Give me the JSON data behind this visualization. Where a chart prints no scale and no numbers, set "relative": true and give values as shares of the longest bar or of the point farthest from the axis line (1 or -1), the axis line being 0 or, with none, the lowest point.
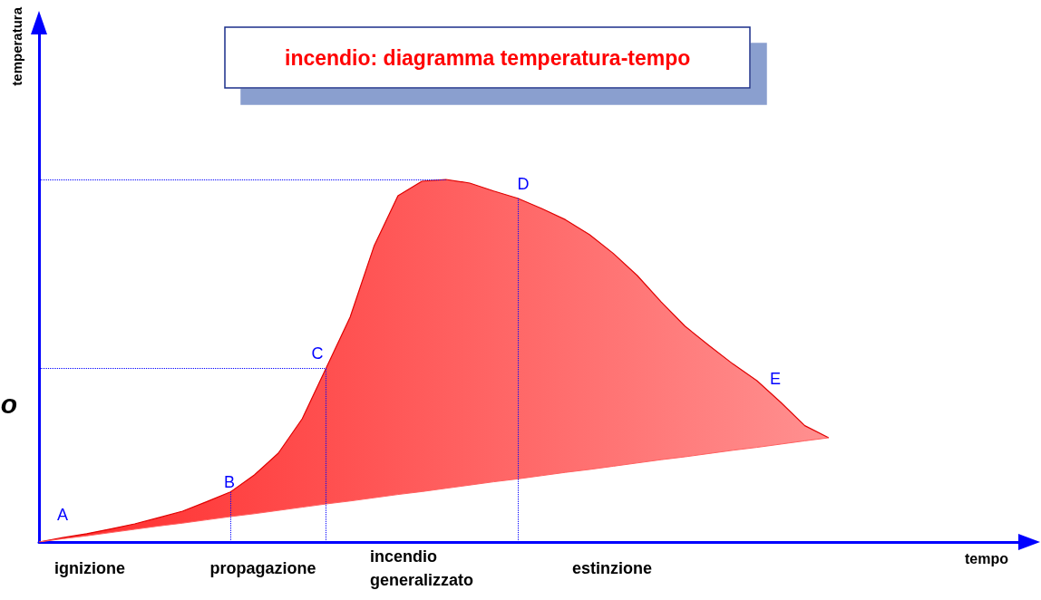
{
  "chart_data": {
    "type": "area",
    "title": "incendio: diagramma temperatura-tempo",
    "xlabel": "tempo",
    "relative": true,
    "marker": "none",
    "line_style": "solid",
    "categories": [
      null,
      null,
      null,
      null,
      null,
      null,
      null,
      null,
      null,
      null,
      null,
      null,
      null,
      null,
      null,
      null,
      null,
      null,
      null,
      null,
      null,
      null,
      null,
      null,
      null,
      null,
      null,
      null,
      null,
      null,
      null,
      null,
      null,
      null,
      null,
      null,
      null,
      null,
      null,
      null,
      null,
      null
    ],
    "series": [
      {
        "color": "#ff2a2a",
        "values": [
          0,
          0.012,
          0.023,
          0.036,
          0.05,
          0.067,
          0.085,
          0.111,
          0.138,
          0.185,
          0.245,
          0.34,
          0.48,
          0.62,
          0.816,
          0.955,
          0.995,
          1.0,
          0.99,
          0.968,
          0.948,
          0.92,
          0.889,
          0.848,
          0.796,
          0.735,
          0.662,
          0.595,
          0.542,
          0.491,
          0.445,
          0.385,
          0.321,
          0.2875,
          null,
          null,
          null,
          null,
          null,
          null,
          null,
          null
        ]
      },
      {
        "type": "line",
        "color": "#ff6060",
        "values": [
          0,
          0.009,
          0.017,
          0.026,
          0.035,
          0.044,
          0.052,
          0.061,
          0.07,
          0.078,
          0.087,
          0.096,
          0.105,
          0.113,
          0.122,
          0.131,
          0.139,
          0.148,
          0.157,
          0.166,
          0.174,
          0.183,
          0.192,
          0.2,
          0.209,
          0.218,
          0.227,
          0.235,
          0.244,
          0.253,
          0.261,
          0.27,
          0.279,
          0.2875,
          null,
          null,
          null,
          null,
          null,
          null,
          null,
          null
        ]
      }
    ],
    "ref_lines": [
      {
        "axis": "y",
        "value": 0.48,
        "color": "#0000ff",
        "line_style": "dotted"
      },
      {
        "axis": "y",
        "value": 1.0,
        "color": "#0000ff",
        "line_style": "dotted"
      }
    ],
    "annotations": [
      "A",
      "B",
      "C",
      "D",
      "E",
      "ignizione",
      "propagazione",
      "incendio\ngeneralizzato",
      "estinzione",
      "o",
      "temperatura"
    ]
  }
}
